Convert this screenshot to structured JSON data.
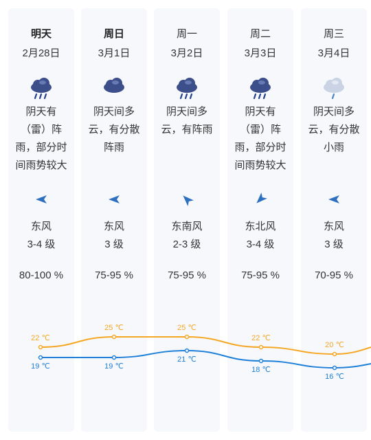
{
  "forecast": [
    {
      "day": "明天",
      "bold": true,
      "date": "2月28日",
      "icon": "cloud-rain-icon",
      "desc": [
        "阴天有",
        "（雷）阵",
        "雨，部分时",
        "间雨势较大"
      ],
      "wind_icon": "wind-direction-icon",
      "wind_deg": 0,
      "wind": "东风",
      "level": "3-4 级",
      "humidity": "80-100 %",
      "high": "22 ℃",
      "low": "19 ℃"
    },
    {
      "day": "周日",
      "bold": true,
      "date": "3月1日",
      "icon": "cloud-icon",
      "desc": [
        "阴天间多",
        "云，有分散",
        "阵雨"
      ],
      "wind_icon": "wind-direction-icon",
      "wind_deg": 0,
      "wind": "东风",
      "level": "3 级",
      "humidity": "75-95 %",
      "high": "25 ℃",
      "low": "19 ℃"
    },
    {
      "day": "周一",
      "bold": false,
      "date": "3月2日",
      "icon": "cloud-rain-icon",
      "desc": [
        "阴天间多",
        "云，有阵雨"
      ],
      "wind_icon": "wind-direction-icon",
      "wind_deg": 45,
      "wind": "东南风",
      "level": "2-3 级",
      "humidity": "75-95 %",
      "high": "25 ℃",
      "low": "21 ℃"
    },
    {
      "day": "周二",
      "bold": false,
      "date": "3月3日",
      "icon": "cloud-rain-icon",
      "desc": [
        "阴天有",
        "（雷）阵",
        "雨，部分时",
        "间雨势较大"
      ],
      "wind_icon": "wind-direction-icon",
      "wind_deg": -45,
      "wind": "东北风",
      "level": "3-4 级",
      "humidity": "75-95 %",
      "high": "22 ℃",
      "low": "18 ℃"
    },
    {
      "day": "周三",
      "bold": false,
      "date": "3月4日",
      "icon": "cloud-light-rain-icon",
      "desc": [
        "阴天间多",
        "云，有分散",
        "小雨"
      ],
      "wind_icon": "wind-direction-icon",
      "wind_deg": 0,
      "wind": "东风",
      "level": "3 级",
      "humidity": "70-95 %",
      "high": "20 ℃",
      "low": "16 ℃"
    }
  ],
  "chart_data": {
    "type": "line",
    "x": [
      "2月28日",
      "3月1日",
      "3月2日",
      "3月3日",
      "3月4日"
    ],
    "series": [
      {
        "values": [
          22,
          25,
          25,
          22,
          20
        ],
        "color": "#f5a623"
      },
      {
        "values": [
          19,
          19,
          21,
          18,
          16
        ],
        "color": "#1e7fd8"
      }
    ],
    "unit": "℃"
  },
  "colors": {
    "high": "#f5a623",
    "low": "#1e7fd8",
    "card": "#f6f8fc",
    "icon_dark": "#2c3e73"
  }
}
